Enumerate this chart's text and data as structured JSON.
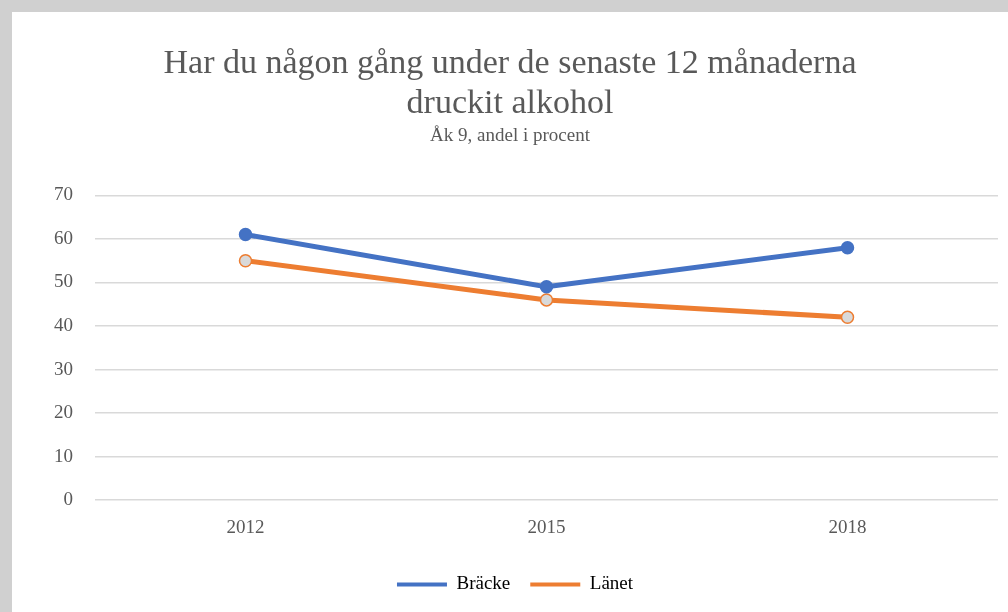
{
  "chart_data": {
    "type": "line",
    "title": "Har du någon gång under de senaste 12 månaderna druckit alkohol",
    "subtitle": "Åk 9, andel i procent",
    "categories": [
      "2012",
      "2015",
      "2018"
    ],
    "series": [
      {
        "name": "Bräcke",
        "color": "#4472c4",
        "values": [
          61,
          49,
          58
        ]
      },
      {
        "name": "Länet",
        "color": "#ed7d31",
        "values": [
          55,
          46,
          42
        ]
      }
    ],
    "ylim": [
      0,
      70
    ],
    "yticks": [
      0,
      10,
      20,
      30,
      40,
      50,
      60,
      70
    ],
    "grid": "y",
    "legend": "bottom",
    "marker": "circle",
    "line_style": "solid"
  }
}
